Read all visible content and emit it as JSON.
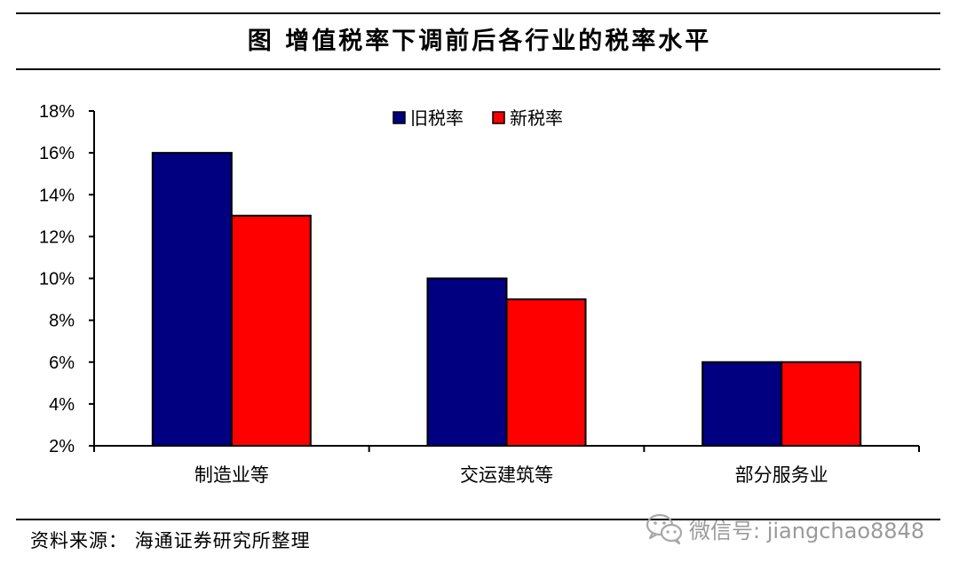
{
  "header": {
    "title": "图   增值税率下调前后各行业的税率水平"
  },
  "footer": {
    "source": "资料来源：  海通证券研究所整理",
    "watermark": "微信号: jiangchao8848",
    "watermark_icon": "wechat-icon"
  },
  "chart_data": {
    "type": "bar",
    "title": "",
    "xlabel": "",
    "ylabel": "",
    "categories": [
      "制造业等",
      "交运建筑等",
      "部分服务业"
    ],
    "series": [
      {
        "name": "旧税率",
        "values": [
          16,
          10,
          6
        ],
        "color": "#000080"
      },
      {
        "name": "新税率",
        "values": [
          13,
          9,
          6
        ],
        "color": "#ff0000"
      }
    ],
    "ylim": [
      2,
      18
    ],
    "yticks": [
      "2%",
      "4%",
      "6%",
      "8%",
      "10%",
      "12%",
      "14%",
      "16%",
      "18%"
    ],
    "ytick_values": [
      2,
      4,
      6,
      8,
      10,
      12,
      14,
      16,
      18
    ],
    "grid": false,
    "legend_position": "top-center"
  }
}
